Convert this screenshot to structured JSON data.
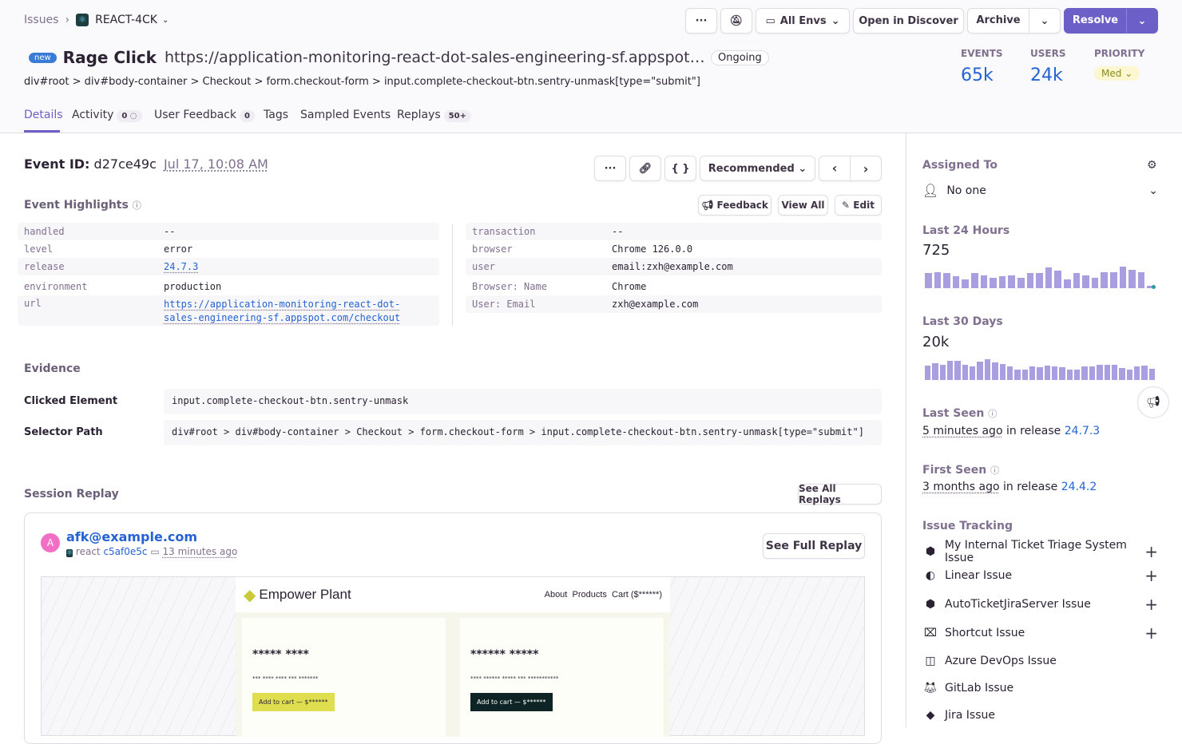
{
  "breadcrumb": {
    "root": "Issues",
    "project": "REACT-4CK"
  },
  "toolbar": {
    "more": "···",
    "all_envs": "All Envs",
    "open_discover": "Open in Discover",
    "archive": "Archive",
    "resolve": "Resolve"
  },
  "issue": {
    "badge": "new",
    "title": "Rage Click",
    "url": "https://application-monitoring-react-dot-sales-engineering-sf.appspot…",
    "status": "Ongoing",
    "selector": "div#root > div#body-container > Checkout > form.checkout-form > input.complete-checkout-btn.sentry-unmask[type=\"submit\"]"
  },
  "stats": {
    "events_label": "EVENTS",
    "events": "65k",
    "users_label": "USERS",
    "users": "24k",
    "priority_label": "PRIORITY",
    "priority": "Med"
  },
  "tabs": [
    {
      "label": "Details"
    },
    {
      "label": "Activity",
      "count": "0"
    },
    {
      "label": "User Feedback",
      "count": "0"
    },
    {
      "label": "Tags"
    },
    {
      "label": "Sampled Events"
    },
    {
      "label": "Replays",
      "count": "50+"
    }
  ],
  "event": {
    "id_label": "Event ID:",
    "id": "d27ce49c",
    "time": "Jul 17, 10:08 AM",
    "sort": "Recommended"
  },
  "highlights": {
    "title": "Event Highlights",
    "feedback": "Feedback",
    "view_all": "View All",
    "edit": "Edit",
    "left": [
      {
        "k": "handled",
        "v": "--"
      },
      {
        "k": "level",
        "v": "error"
      },
      {
        "k": "release",
        "v": "24.7.3"
      },
      {
        "k": "environment",
        "v": "production"
      },
      {
        "k": "url",
        "v": "https://application-monitoring-react-dot-sales-engineering-sf.appspot.com/checkout"
      }
    ],
    "right": [
      {
        "k": "transaction",
        "v": "--"
      },
      {
        "k": "browser",
        "v": "Chrome 126.0.0"
      },
      {
        "k": "user",
        "v": "email:zxh@example.com"
      },
      {
        "k": "Browser: Name",
        "v": "Chrome"
      },
      {
        "k": "User: Email",
        "v": "zxh@example.com"
      }
    ]
  },
  "evidence": {
    "title": "Evidence",
    "rows": [
      {
        "k": "Clicked Element",
        "v": "input.complete-checkout-btn.sentry-unmask"
      },
      {
        "k": "Selector Path",
        "v": "div#root > div#body-container > Checkout > form.checkout-form > input.complete-checkout-btn.sentry-unmask[type=\"submit\"]"
      }
    ]
  },
  "replay": {
    "title": "Session Replay",
    "see_all": "See All Replays",
    "avatar": "A",
    "user": "afk@example.com",
    "platform": "react",
    "id": "c5af0e5c",
    "time": "13 minutes ago",
    "see_full": "See Full Replay",
    "site": {
      "brand": "Empower Plant",
      "nav": [
        "About",
        "Products",
        "Cart ($******)"
      ],
      "cards": [
        {
          "title": "***** ****",
          "desc": "*** **** **** *** *******",
          "btn": "Add to cart — $******"
        },
        {
          "title": "****** *****",
          "desc": "**** ****** ***** *** ***********",
          "btn": "Add to cart — $******"
        }
      ]
    }
  },
  "sidebar": {
    "assigned_label": "Assigned To",
    "assignee": "No one",
    "last24_label": "Last 24 Hours",
    "last24": "725",
    "last24_bars": [
      55,
      57,
      55,
      42,
      33,
      55,
      46,
      37,
      42,
      45,
      37,
      54,
      55,
      76,
      63,
      32,
      55,
      47,
      37,
      58,
      57,
      78,
      67,
      58,
      8
    ],
    "last30_label": "Last 30 Days",
    "last30": "20k",
    "last30_bars": [
      55,
      62,
      57,
      72,
      72,
      57,
      52,
      69,
      78,
      66,
      60,
      52,
      38,
      38,
      50,
      48,
      55,
      50,
      47,
      40,
      38,
      50,
      50,
      58,
      56,
      56,
      45,
      38,
      52,
      54,
      43
    ],
    "last_seen_label": "Last Seen",
    "last_seen": "5 minutes ago",
    "last_seen_mid": "in release",
    "last_seen_release": "24.7.3",
    "first_seen_label": "First Seen",
    "first_seen": "3 months ago",
    "first_seen_mid": "in release",
    "first_seen_release": "24.4.2",
    "tracking_label": "Issue Tracking",
    "tracking": [
      {
        "label": "My Internal Ticket Triage System Issue",
        "icon": "integration-icon",
        "add": true
      },
      {
        "label": "Linear Issue",
        "icon": "linear-icon",
        "add": true
      },
      {
        "label": "AutoTicketJiraServer Issue",
        "icon": "integration-icon",
        "add": true
      },
      {
        "label": "Shortcut Issue",
        "icon": "shortcut-icon",
        "add": true
      },
      {
        "label": "Azure DevOps Issue",
        "icon": "azure-devops-icon",
        "add": false
      },
      {
        "label": "GitLab Issue",
        "icon": "gitlab-icon",
        "add": false
      },
      {
        "label": "Jira Issue",
        "icon": "jira-icon",
        "add": false
      }
    ]
  },
  "colors": {
    "accent": "#6c5fc7",
    "link": "#2562d4",
    "bar": "#a89ee0",
    "priority_bg": "#fcf7d0"
  }
}
